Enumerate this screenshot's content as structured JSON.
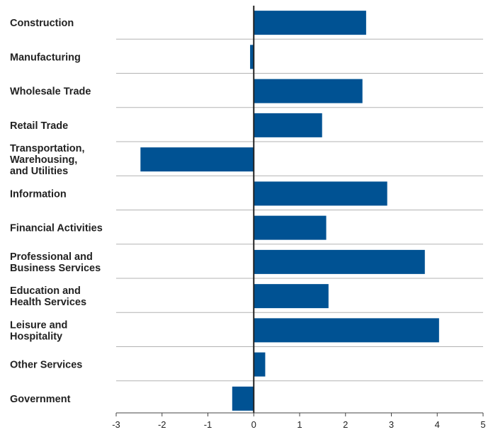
{
  "chart_data": {
    "type": "bar",
    "orientation": "horizontal",
    "categories": [
      [
        "Construction"
      ],
      [
        "Manufacturing"
      ],
      [
        "Wholesale Trade"
      ],
      [
        "Retail Trade"
      ],
      [
        "Transportation,",
        "Warehousing,",
        "and Utilities"
      ],
      [
        "Information"
      ],
      [
        "Financial Activities"
      ],
      [
        "Professional and",
        "Business Services"
      ],
      [
        "Education and",
        "Health Services"
      ],
      [
        "Leisure and",
        "Hospitality"
      ],
      [
        "Other Services"
      ],
      [
        "Government"
      ]
    ],
    "values": [
      2.45,
      -0.08,
      2.37,
      1.49,
      -2.47,
      2.91,
      1.58,
      3.73,
      1.63,
      4.04,
      0.25,
      -0.47
    ],
    "xlim": [
      -3,
      5
    ],
    "xticks": [
      "-3",
      "-2",
      "-1",
      "0",
      "1",
      "2",
      "3",
      "4",
      "5"
    ],
    "bar_color": "#005293",
    "grid": "row-separators",
    "title": "",
    "xlabel": "",
    "ylabel": ""
  }
}
